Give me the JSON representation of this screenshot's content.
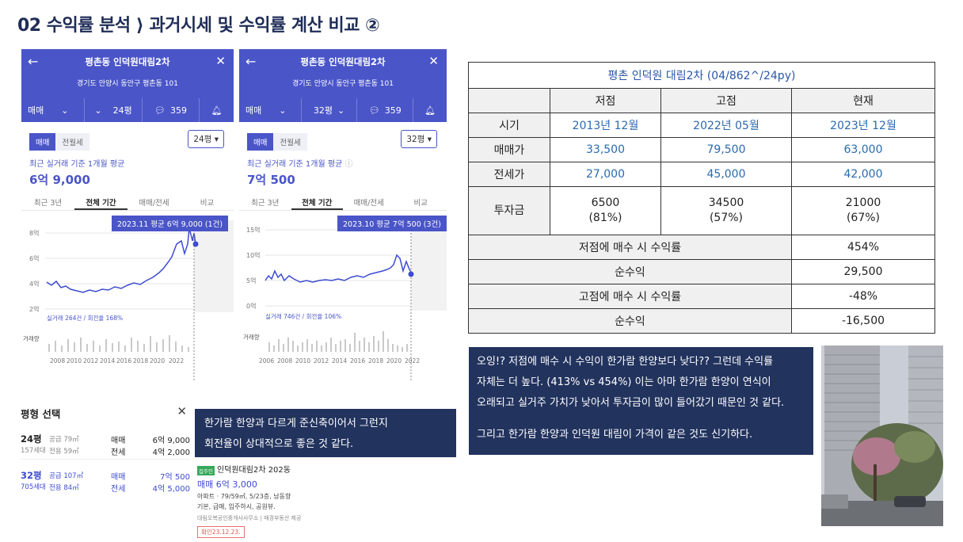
{
  "slide": {
    "title": "02 수익률 분석 ⟩ 과거시세 및 수익률 계산 비교 ②"
  },
  "phones": [
    {
      "back_icon": "←",
      "close_icon": "✕",
      "title": "평촌동 인덕원대림2차",
      "address": "경기도 안양시 동안구 평촌동 101",
      "trade_type": "매매",
      "size": "24평",
      "comment_count": "359",
      "seg_sale": "매매",
      "seg_rent": "전월세",
      "size_select": "24평",
      "avg_label": "최근 실거래 기준 1개월 평균",
      "avg_value": "6억 9,000",
      "tabs": [
        "최근 3년",
        "전체 기간",
        "매매/전세",
        "비교"
      ],
      "tooltip": "2023.11 평균 6억 9,000 (1건)",
      "y_ticks": [
        "8억",
        "6억",
        "4억",
        "2억"
      ],
      "stats": "실거래 264건 / 회전율 168%",
      "volume_label": "거래량",
      "x_ticks": [
        "2008",
        "2010",
        "2012",
        "2014",
        "2016",
        "2018",
        "2020",
        "2022"
      ]
    },
    {
      "back_icon": "←",
      "close_icon": "✕",
      "title": "평촌동 인덕원대림2차",
      "address": "경기도 안양시 동안구 평촌동 101",
      "trade_type": "매매",
      "size": "32평",
      "comment_count": "359",
      "seg_sale": "매매",
      "seg_rent": "전월세",
      "size_select": "32평",
      "avg_label": "최근 실거래 기준 1개월 평균",
      "avg_value": "7억 500",
      "tabs": [
        "최근 3년",
        "전체 기간",
        "매매/전세",
        "비교"
      ],
      "tooltip": "2023.10 평균 7억 500 (3건)",
      "y_ticks": [
        "15억",
        "10억",
        "5억",
        "0억"
      ],
      "stats": "실거래 746건 / 회전율 106%",
      "volume_label": "거래량",
      "x_ticks": [
        "2006",
        "2008",
        "2010",
        "2012",
        "2014",
        "2016",
        "2018",
        "2020",
        "2022"
      ]
    }
  ],
  "table": {
    "title": "평촌 인덕원 대림2차 (04/862^/24py)",
    "col_headers": [
      "저점",
      "고점",
      "현재"
    ],
    "rows": [
      {
        "label": "시기",
        "values": [
          "2013년 12월",
          "2022년 05월",
          "2023년 12월"
        ]
      },
      {
        "label": "매매가",
        "values": [
          "33,500",
          "79,500",
          "63,000"
        ]
      },
      {
        "label": "전세가",
        "values": [
          "27,000",
          "45,000",
          "42,000"
        ]
      },
      {
        "label": "투자금",
        "values": [
          "6500",
          "34500",
          "21000"
        ],
        "sub": [
          "(81%)",
          "(57%)",
          "(67%)"
        ]
      }
    ],
    "summary": [
      {
        "label": "저점에 매수 시 수익률",
        "value": "454%"
      },
      {
        "label": "순수익",
        "value": "29,500"
      },
      {
        "label": "고점에 매수 시 수익률",
        "value": "-48%"
      },
      {
        "label": "순수익",
        "value": "-16,500"
      }
    ]
  },
  "size_select": {
    "title": "평형 선택",
    "close_icon": "✕",
    "rows": [
      {
        "name": "24평",
        "households": "157세대",
        "supply": "공급 79㎡",
        "exclusive": "전용 59㎡",
        "t1": "매매",
        "v1": "6억 9,000",
        "t2": "전세",
        "v2": "4억 2,000",
        "selected": false
      },
      {
        "name": "32평",
        "households": "705세대",
        "supply": "공급 107㎡",
        "exclusive": "전용 84㎡",
        "t1": "매매",
        "v1": "7억 500",
        "t2": "전세",
        "v2": "4억 5,000",
        "selected": true
      }
    ]
  },
  "comment1": {
    "line1": "한가람 한양과 다르게 준신축이어서 그런지",
    "line2": "회전율이 상대적으로 좋은 것 같다."
  },
  "comment2": {
    "line1": "오잉!? 저점에 매수 시 수익이 한가람 한양보다 낮다?? 그런데 수익률",
    "line2": "자체는 더 높다. (413% vs 454%) 이는 아마 한가람 한양이 연식이",
    "line3": "오래되고 실거주 가치가 낮아서 투자금이 많이 들어갔기 때문인 것 같다.",
    "line4": "그리고 한가람 한양과 인덕원 대림이 가격이 같은 것도 신기하다."
  },
  "listing": {
    "badge": "집주인",
    "name": "인덕원대림2차 202동",
    "price": "매매 6억 3,000",
    "detail": "아파트 · 79/59㎡, 5/23층, 남동향",
    "tags": "기본, 급매, 입주하시, 공원뷰.",
    "agent": "대림오복공인중개사사무소 | 매경부동산 제공",
    "date": "확인23.12.23."
  },
  "colors": {
    "title": "#1f2d57",
    "brand": "#4a55c8",
    "box": "#22335e",
    "value_blue": "#2a6ab0"
  }
}
